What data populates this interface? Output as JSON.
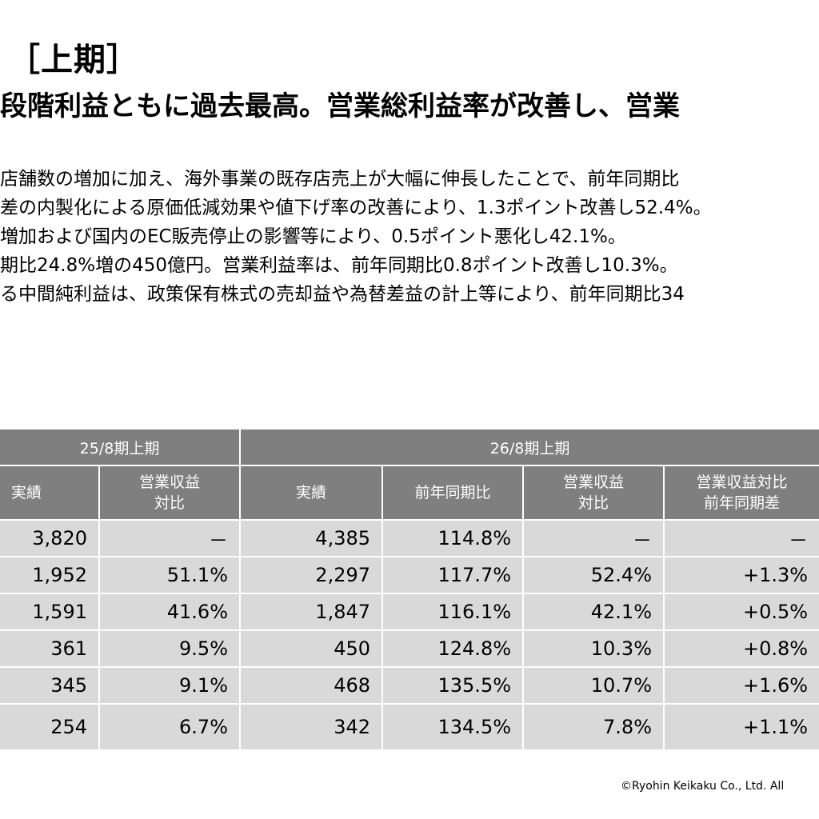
{
  "title": "［上期］",
  "headline": "段階利益ともに過去最高。営業総利益率が改善し、営業",
  "bullets": [
    "店舗数の増加に加え、海外事業の既存店売上が大幅に伸長したことで、前年同期比",
    "差の内製化による原価低減効果や値下げ率の改善により、1.3ポイント改善し52.4%。",
    "増加および国内のEC販売停止の影響等により、0.5ポイント悪化し42.1%。",
    "期比24.8%増の450億円。営業利益率は、前年同期比0.8ポイント改善し10.3%。",
    "る中間純利益は、政策保有株式の売却益や為替差益の計上等により、前年同期比34"
  ],
  "table": {
    "group_headers": [
      "25/8期上期",
      "26/8期上期"
    ],
    "sub_headers": {
      "prev_actual": "実績",
      "prev_ratio": [
        "営業収益",
        "対比"
      ],
      "cur_actual": "実績",
      "cur_yoy": "前年同期比",
      "cur_ratio": [
        "営業収益",
        "対比"
      ],
      "cur_diff": [
        "営業収益対比",
        "前年同期差"
      ]
    },
    "rows": [
      {
        "prev_actual": "3,820",
        "prev_ratio": "－",
        "cur_actual": "4,385",
        "cur_yoy": "114.8%",
        "cur_ratio": "－",
        "cur_diff": "－"
      },
      {
        "prev_actual": "1,952",
        "prev_ratio": "51.1%",
        "cur_actual": "2,297",
        "cur_yoy": "117.7%",
        "cur_ratio": "52.4%",
        "cur_diff": "+1.3%"
      },
      {
        "prev_actual": "1,591",
        "prev_ratio": "41.6%",
        "cur_actual": "1,847",
        "cur_yoy": "116.1%",
        "cur_ratio": "42.1%",
        "cur_diff": "+0.5%"
      },
      {
        "prev_actual": "361",
        "prev_ratio": "9.5%",
        "cur_actual": "450",
        "cur_yoy": "124.8%",
        "cur_ratio": "10.3%",
        "cur_diff": "+0.8%"
      },
      {
        "prev_actual": "345",
        "prev_ratio": "9.1%",
        "cur_actual": "468",
        "cur_yoy": "135.5%",
        "cur_ratio": "10.7%",
        "cur_diff": "+1.6%"
      },
      {
        "prev_actual": "254",
        "prev_ratio": "6.7%",
        "cur_actual": "342",
        "cur_yoy": "134.5%",
        "cur_ratio": "7.8%",
        "cur_diff": "+1.1%"
      }
    ]
  },
  "footer": "©Ryohin Keikaku Co., Ltd. All"
}
